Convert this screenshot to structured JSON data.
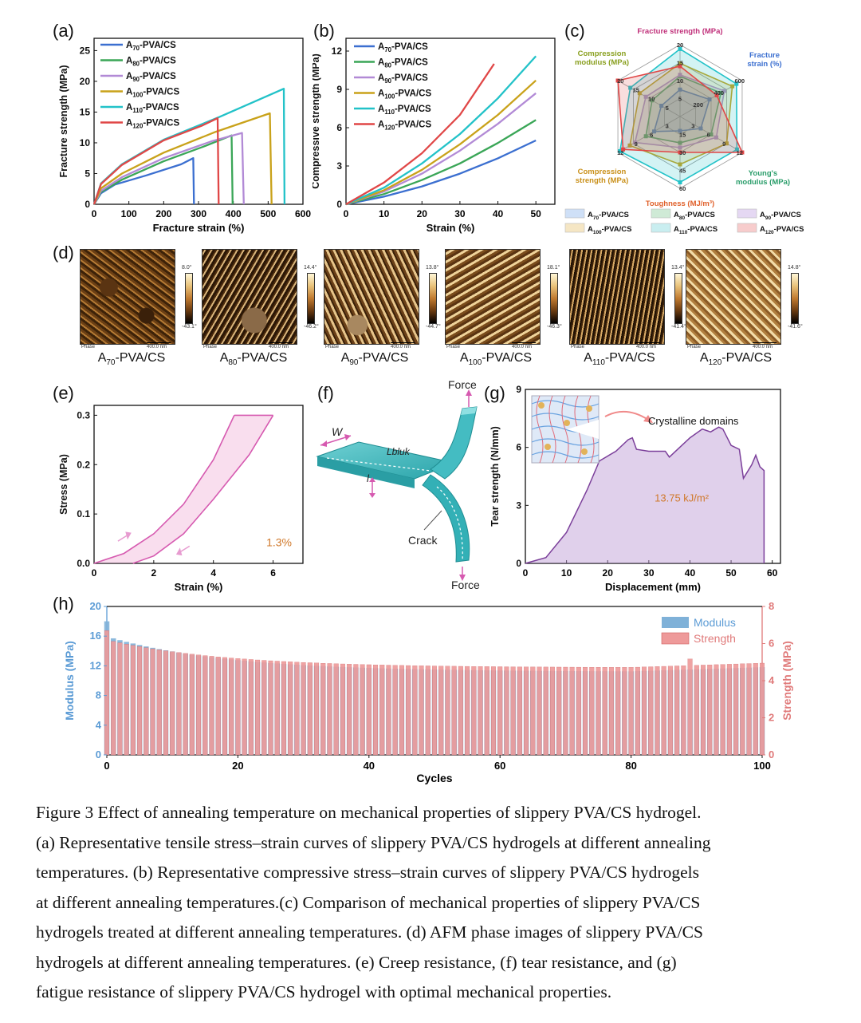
{
  "panel_labels": {
    "a": "(a)",
    "b": "(b)",
    "c": "(c)",
    "d": "(d)",
    "e": "(e)",
    "f": "(f)",
    "g": "(g)",
    "h": "(h)"
  },
  "samples": [
    "A70-PVA/CS",
    "A80-PVA/CS",
    "A90-PVA/CS",
    "A100-PVA/CS",
    "A110-PVA/CS",
    "A120-PVA/CS"
  ],
  "series_colors": [
    "#3b6fd0",
    "#3aa657",
    "#b28ad6",
    "#c9a21a",
    "#22c2c8",
    "#e04747"
  ],
  "chart_data": [
    {
      "id": "a",
      "type": "line",
      "xlabel": "Fracture strain (%)",
      "ylabel": "Fracture strength (MPa)",
      "xlim": [
        0,
        600
      ],
      "ylim": [
        0,
        27
      ],
      "xticks": [
        0,
        100,
        200,
        300,
        400,
        500,
        600
      ],
      "yticks": [
        0,
        5,
        10,
        15,
        20,
        25
      ],
      "legend": "top-left",
      "series": [
        {
          "name": "A70-PVA/CS",
          "points": [
            [
              0,
              0
            ],
            [
              20,
              1.8
            ],
            [
              60,
              3.2
            ],
            [
              150,
              4.7
            ],
            [
              250,
              6.5
            ],
            [
              285,
              7.5
            ],
            [
              287,
              0
            ]
          ]
        },
        {
          "name": "A80-PVA/CS",
          "points": [
            [
              0,
              0
            ],
            [
              20,
              2.0
            ],
            [
              80,
              4.0
            ],
            [
              200,
              7.0
            ],
            [
              320,
              9.5
            ],
            [
              395,
              11.2
            ],
            [
              398,
              0
            ]
          ]
        },
        {
          "name": "A90-PVA/CS",
          "points": [
            [
              0,
              0
            ],
            [
              20,
              2.2
            ],
            [
              80,
              4.4
            ],
            [
              200,
              7.5
            ],
            [
              340,
              10.3
            ],
            [
              425,
              11.6
            ],
            [
              430,
              0
            ]
          ]
        },
        {
          "name": "A100-PVA/CS",
          "points": [
            [
              0,
              0
            ],
            [
              20,
              2.6
            ],
            [
              80,
              5.0
            ],
            [
              200,
              8.4
            ],
            [
              350,
              11.8
            ],
            [
              505,
              14.8
            ],
            [
              510,
              0
            ]
          ]
        },
        {
          "name": "A110-PVA/CS",
          "points": [
            [
              0,
              0
            ],
            [
              20,
              3.4
            ],
            [
              80,
              6.5
            ],
            [
              200,
              10.5
            ],
            [
              360,
              14.2
            ],
            [
              545,
              18.8
            ],
            [
              547,
              0
            ]
          ]
        },
        {
          "name": "A120-PVA/CS",
          "points": [
            [
              0,
              0
            ],
            [
              20,
              3.3
            ],
            [
              80,
              6.4
            ],
            [
              200,
              10.4
            ],
            [
              310,
              12.8
            ],
            [
              355,
              14.0
            ],
            [
              358,
              0
            ]
          ]
        }
      ]
    },
    {
      "id": "b",
      "type": "line",
      "xlabel": "Strain (%)",
      "ylabel": "Compressive strength (MPa)",
      "xlim": [
        0,
        55
      ],
      "ylim": [
        0,
        13
      ],
      "xticks": [
        0,
        10,
        20,
        30,
        40,
        50
      ],
      "yticks": [
        0,
        3,
        6,
        9,
        12
      ],
      "legend": "top-left",
      "series": [
        {
          "name": "A70-PVA/CS",
          "points": [
            [
              0,
              0
            ],
            [
              10,
              0.6
            ],
            [
              20,
              1.4
            ],
            [
              30,
              2.4
            ],
            [
              40,
              3.6
            ],
            [
              50,
              5.0
            ]
          ]
        },
        {
          "name": "A80-PVA/CS",
          "points": [
            [
              0,
              0
            ],
            [
              10,
              0.8
            ],
            [
              20,
              1.9
            ],
            [
              30,
              3.2
            ],
            [
              40,
              4.8
            ],
            [
              50,
              6.6
            ]
          ]
        },
        {
          "name": "A90-PVA/CS",
          "points": [
            [
              0,
              0
            ],
            [
              10,
              1.0
            ],
            [
              20,
              2.4
            ],
            [
              30,
              4.2
            ],
            [
              40,
              6.3
            ],
            [
              50,
              8.7
            ]
          ]
        },
        {
          "name": "A100-PVA/CS",
          "points": [
            [
              0,
              0
            ],
            [
              10,
              1.1
            ],
            [
              20,
              2.7
            ],
            [
              30,
              4.7
            ],
            [
              40,
              7.0
            ],
            [
              50,
              9.7
            ]
          ]
        },
        {
          "name": "A110-PVA/CS",
          "points": [
            [
              0,
              0
            ],
            [
              10,
              1.3
            ],
            [
              20,
              3.2
            ],
            [
              30,
              5.5
            ],
            [
              40,
              8.3
            ],
            [
              50,
              11.6
            ]
          ]
        },
        {
          "name": "A120-PVA/CS",
          "points": [
            [
              0,
              0
            ],
            [
              10,
              1.7
            ],
            [
              20,
              4.0
            ],
            [
              30,
              7.0
            ],
            [
              39,
              11.0
            ]
          ]
        }
      ]
    },
    {
      "id": "c",
      "type": "radar",
      "axes": [
        {
          "name": "Fracture strength (MPa)",
          "color": "#c0307a",
          "ticks": [
            "5",
            "10",
            "15",
            "20"
          ]
        },
        {
          "name": "Fracture strain (%)",
          "color": "#3b6fd0",
          "ticks": [
            "200",
            "400",
            "600"
          ]
        },
        {
          "name": "Young's modulus (MPa)",
          "color": "#2a9d6a",
          "ticks": [
            "3",
            "6",
            "9",
            "12"
          ]
        },
        {
          "name": "Toughness (MJ/m³)",
          "color": "#e0602a",
          "ticks": [
            "15",
            "30",
            "45",
            "60"
          ]
        },
        {
          "name": "Compression strength (MPa)",
          "color": "#c9901a",
          "ticks": [
            "3",
            "6",
            "9",
            "12"
          ]
        },
        {
          "name": "Compression modulus (MPa)",
          "color": "#8aa020",
          "ticks": [
            "5",
            "10",
            "15",
            "20"
          ]
        }
      ],
      "series": [
        {
          "name": "A70-PVA/CS",
          "values": [
            7.5,
            285,
            4,
            12,
            5,
            6
          ]
        },
        {
          "name": "A80-PVA/CS",
          "values": [
            11.2,
            395,
            6,
            22,
            6.6,
            9
          ]
        },
        {
          "name": "A90-PVA/CS",
          "values": [
            11.6,
            428,
            7,
            26,
            8.7,
            11
          ]
        },
        {
          "name": "A100-PVA/CS",
          "values": [
            14.8,
            505,
            9,
            40,
            9.7,
            13
          ]
        },
        {
          "name": "A110-PVA/CS",
          "values": [
            18.8,
            545,
            11,
            55,
            11.6,
            16
          ]
        },
        {
          "name": "A120-PVA/CS",
          "values": [
            14.0,
            355,
            12,
            30,
            11.0,
            20
          ]
        }
      ]
    },
    {
      "id": "e",
      "type": "line",
      "xlabel": "Strain (%)",
      "ylabel": "Stress (MPa)",
      "xlim": [
        0,
        7
      ],
      "ylim": [
        0,
        0.32
      ],
      "xticks": [
        0,
        2,
        4,
        6
      ],
      "yticks": [
        0.0,
        0.1,
        0.2,
        0.3
      ],
      "annotation": "1.3%",
      "loading": [
        [
          0,
          0
        ],
        [
          1,
          0.02
        ],
        [
          2,
          0.06
        ],
        [
          3,
          0.12
        ],
        [
          4,
          0.21
        ],
        [
          4.7,
          0.3
        ]
      ],
      "plateau": [
        [
          4.7,
          0.3
        ],
        [
          6,
          0.3
        ]
      ],
      "unloading": [
        [
          6,
          0.3
        ],
        [
          5.2,
          0.22
        ],
        [
          4,
          0.13
        ],
        [
          3,
          0.06
        ],
        [
          2,
          0.015
        ],
        [
          1.3,
          0
        ]
      ]
    },
    {
      "id": "g",
      "type": "area",
      "xlabel": "Displacement (mm)",
      "ylabel": "Tear strength (N/mm)",
      "xlim": [
        0,
        62
      ],
      "ylim": [
        0,
        9
      ],
      "xticks": [
        0,
        10,
        20,
        30,
        40,
        50,
        60
      ],
      "yticks": [
        0,
        3,
        6,
        9
      ],
      "annotation": "13.75 kJ/m²",
      "inset_label": "Crystalline domains",
      "points": [
        [
          0,
          0
        ],
        [
          5,
          0.3
        ],
        [
          10,
          1.6
        ],
        [
          15,
          3.8
        ],
        [
          18,
          5.3
        ],
        [
          22,
          5.8
        ],
        [
          25,
          6.4
        ],
        [
          26,
          6.5
        ],
        [
          27,
          5.9
        ],
        [
          30,
          5.8
        ],
        [
          34,
          5.8
        ],
        [
          35,
          5.5
        ],
        [
          37,
          5.9
        ],
        [
          40,
          6.5
        ],
        [
          43,
          6.95
        ],
        [
          45,
          6.8
        ],
        [
          47,
          7.05
        ],
        [
          48,
          6.95
        ],
        [
          50,
          6.1
        ],
        [
          52,
          5.9
        ],
        [
          53,
          4.4
        ],
        [
          55,
          5.1
        ],
        [
          56,
          5.6
        ],
        [
          57,
          5.0
        ],
        [
          58,
          4.8
        ],
        [
          58,
          0
        ]
      ]
    },
    {
      "id": "h",
      "type": "bar",
      "xlabel": "Cycles",
      "ylabel": "Modulus (MPa)",
      "y2label": "Strength (MPa)",
      "xlim": [
        0,
        100
      ],
      "ylim": [
        0,
        20
      ],
      "y2lim": [
        0,
        8
      ],
      "xticks": [
        0,
        20,
        40,
        60,
        80,
        100
      ],
      "yticks": [
        0,
        4,
        8,
        12,
        16,
        20
      ],
      "y2ticks": [
        0,
        2,
        4,
        6,
        8
      ],
      "legend": "top-right",
      "series": [
        {
          "name": "Modulus",
          "color": "#7fb1d8",
          "start": 18.0,
          "end": 11.2
        },
        {
          "name": "Strength",
          "color": "#ee9a9a",
          "start": 6.7,
          "end": 4.7
        }
      ]
    }
  ],
  "panel_f": {
    "force_top": "Force",
    "force_bottom": "Force",
    "crack": "Crack",
    "w": "W",
    "l_bulk": "Lbluk",
    "l": "l"
  },
  "afm": [
    {
      "label": "A70-PVA/CS",
      "hi": "8.0°",
      "lo": "-43.1°",
      "phase": "Phase",
      "scale": "400.0 nm"
    },
    {
      "label": "A80-PVA/CS",
      "hi": "14.4°",
      "lo": "-46.2°",
      "phase": "Phase",
      "scale": "400.0 nm"
    },
    {
      "label": "A90-PVA/CS",
      "hi": "13.8°",
      "lo": "-44.7°",
      "phase": "Phase",
      "scale": "400.0 nm"
    },
    {
      "label": "A100-PVA/CS",
      "hi": "18.1°",
      "lo": "-46.3°",
      "phase": "Phase",
      "scale": "400.0 nm"
    },
    {
      "label": "A110-PVA/CS",
      "hi": "13.4°",
      "lo": "-41.4°",
      "phase": "Phase",
      "scale": "400.0 nm"
    },
    {
      "label": "A120-PVA/CS",
      "hi": "14.8°",
      "lo": "-41.6°",
      "phase": "Phase",
      "scale": "400.0 nm"
    }
  ],
  "caption": [
    "Figure 3 Effect of annealing temperature on mechanical properties of slippery PVA/CS hydrogel.",
    "(a) Representative tensile stress–strain curves of slippery PVA/CS hydrogels at different annealing",
    "temperatures. (b) Representative compressive stress–strain curves of slippery PVA/CS hydrogels",
    "at different annealing temperatures.(c) Comparison of mechanical properties of slippery PVA/CS",
    "hydrogels treated at different annealing temperatures. (d) AFM phase images of slippery PVA/CS",
    "hydrogels at different annealing temperatures. (e) Creep resistance, (f) tear resistance, and (g)",
    "fatigue resistance of slippery PVA/CS hydrogel with optimal mechanical properties."
  ]
}
